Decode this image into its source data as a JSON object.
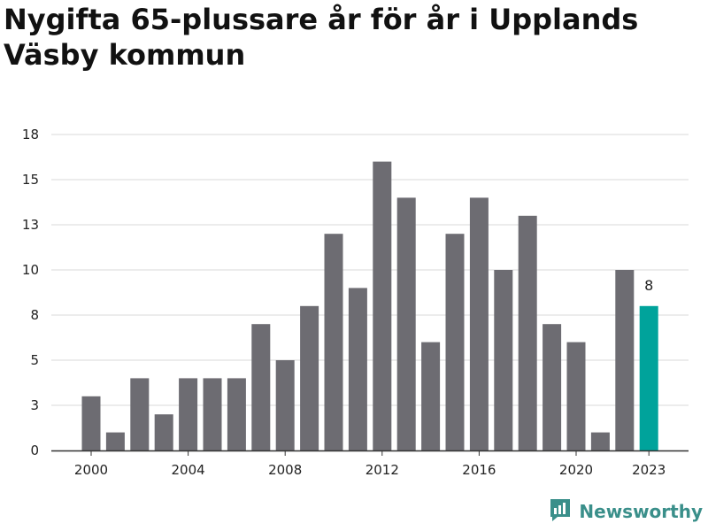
{
  "chart_data": {
    "type": "bar",
    "title": "Nygifta 65-plussare år för år i Upplands Väsby kommun",
    "xlabel": "",
    "ylabel": "",
    "categories": [
      "2000",
      "2001",
      "2002",
      "2003",
      "2004",
      "2005",
      "2006",
      "2007",
      "2008",
      "2009",
      "2010",
      "2011",
      "2012",
      "2013",
      "2014",
      "2015",
      "2016",
      "2017",
      "2018",
      "2019",
      "2020",
      "2021",
      "2022",
      "2023"
    ],
    "values": [
      3,
      1,
      4,
      2,
      4,
      4,
      4,
      7,
      5,
      8,
      12,
      9,
      16,
      14,
      6,
      12,
      14,
      10,
      13,
      7,
      6,
      1,
      10,
      8
    ],
    "ylim": [
      0,
      17.5
    ],
    "ytick_values": [
      0,
      2.5,
      5,
      7.5,
      10,
      12.5,
      15,
      17.5
    ],
    "ytick_labels": [
      "0",
      "3",
      "5",
      "8",
      "10",
      "13",
      "15",
      "18"
    ],
    "xtick_labels": [
      "2000",
      "2004",
      "2008",
      "2012",
      "2016",
      "2020",
      "2023"
    ],
    "highlight_label": "8",
    "grid": true,
    "colors": {
      "bar": "#6d6c72",
      "highlight": "#00a39b",
      "grid": "#d9d9d9",
      "axis": "#333333"
    }
  },
  "brand": {
    "name": "Newsworthy",
    "icon": "newsworthy-logo-icon",
    "color": "#3a8f8a"
  }
}
